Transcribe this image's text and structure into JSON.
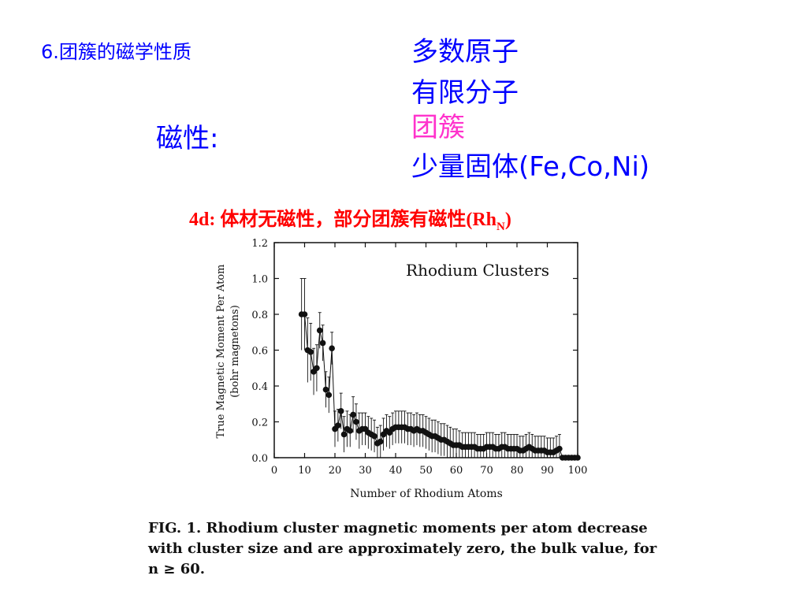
{
  "slide": {
    "section_title": "6.团簇的磁学性质",
    "magnetism_label": "磁性:",
    "categories": [
      "多数原子",
      "有限分子",
      "团簇",
      "少量固体(Fe,Co,Ni)"
    ],
    "category_colors": [
      "#0000ff",
      "#0000ff",
      "#ff33cc",
      "#0000ff"
    ],
    "rh_note_prefix": "4d: 体材无磁性，部分团簇有磁性(Rh",
    "rh_note_sub": "N",
    "rh_note_suffix": ")"
  },
  "chart_data": {
    "type": "scatter",
    "title": "Rhodium Clusters",
    "xlabel": "Number of Rhodium Atoms",
    "ylabel_line1": "True Magnetic Moment Per Atom",
    "ylabel_line2": "(bohr magnetons)",
    "xlim": [
      0,
      100
    ],
    "ylim": [
      0.0,
      1.2
    ],
    "xticks": [
      0,
      10,
      20,
      30,
      40,
      50,
      60,
      70,
      80,
      90,
      100
    ],
    "yticks": [
      0.0,
      0.2,
      0.4,
      0.6,
      0.8,
      1.0,
      1.2
    ],
    "ytick_labels": [
      "0.0",
      "0.2",
      "0.4",
      "0.6",
      "0.8",
      "1.0",
      "1.2"
    ],
    "x": [
      9,
      10,
      11,
      12,
      13,
      14,
      15,
      16,
      17,
      18,
      19,
      20,
      21,
      22,
      23,
      24,
      25,
      26,
      27,
      28,
      29,
      30,
      31,
      32,
      33,
      34,
      35,
      36,
      37,
      38,
      39,
      40,
      41,
      42,
      43,
      44,
      45,
      46,
      47,
      48,
      49,
      50,
      51,
      52,
      53,
      54,
      55,
      56,
      57,
      58,
      59,
      60,
      61,
      62,
      63,
      64,
      65,
      66,
      67,
      68,
      69,
      70,
      71,
      72,
      73,
      74,
      75,
      76,
      77,
      78,
      79,
      80,
      81,
      82,
      83,
      84,
      85,
      86,
      87,
      88,
      89,
      90,
      91,
      92,
      93,
      94,
      95,
      96,
      97,
      98,
      99,
      100
    ],
    "y": [
      0.8,
      0.8,
      0.6,
      0.59,
      0.48,
      0.5,
      0.71,
      0.64,
      0.38,
      0.35,
      0.61,
      0.16,
      0.18,
      0.26,
      0.13,
      0.16,
      0.15,
      0.24,
      0.2,
      0.15,
      0.16,
      0.16,
      0.14,
      0.13,
      0.12,
      0.08,
      0.09,
      0.13,
      0.15,
      0.14,
      0.16,
      0.17,
      0.17,
      0.17,
      0.17,
      0.16,
      0.16,
      0.15,
      0.16,
      0.15,
      0.15,
      0.14,
      0.13,
      0.12,
      0.12,
      0.11,
      0.1,
      0.1,
      0.09,
      0.08,
      0.07,
      0.07,
      0.07,
      0.06,
      0.06,
      0.06,
      0.06,
      0.06,
      0.05,
      0.05,
      0.05,
      0.06,
      0.06,
      0.06,
      0.05,
      0.05,
      0.06,
      0.06,
      0.05,
      0.05,
      0.05,
      0.05,
      0.04,
      0.04,
      0.05,
      0.06,
      0.05,
      0.04,
      0.04,
      0.04,
      0.04,
      0.03,
      0.03,
      0.03,
      0.04,
      0.05,
      0.0,
      0.0,
      0.0,
      0.0,
      0.0,
      0.0
    ],
    "error": [
      0.2,
      0.2,
      0.18,
      0.16,
      0.13,
      0.13,
      0.1,
      0.1,
      0.1,
      0.1,
      0.09,
      0.1,
      0.09,
      0.1,
      0.1,
      0.1,
      0.09,
      0.1,
      0.1,
      0.1,
      0.09,
      0.09,
      0.09,
      0.09,
      0.09,
      0.09,
      0.09,
      0.09,
      0.09,
      0.09,
      0.09,
      0.09,
      0.09,
      0.09,
      0.09,
      0.09,
      0.09,
      0.09,
      0.09,
      0.09,
      0.09,
      0.09,
      0.09,
      0.09,
      0.09,
      0.09,
      0.09,
      0.09,
      0.09,
      0.09,
      0.09,
      0.09,
      0.08,
      0.08,
      0.08,
      0.08,
      0.08,
      0.08,
      0.08,
      0.08,
      0.08,
      0.08,
      0.08,
      0.08,
      0.08,
      0.08,
      0.08,
      0.08,
      0.08,
      0.08,
      0.08,
      0.08,
      0.08,
      0.08,
      0.08,
      0.08,
      0.08,
      0.08,
      0.08,
      0.08,
      0.08,
      0.08,
      0.08,
      0.08,
      0.08,
      0.08,
      0.0,
      0.0,
      0.0,
      0.0,
      0.0,
      0.0
    ],
    "grid": false
  },
  "caption": {
    "text": "FIG. 1. Rhodium cluster magnetic moments per atom decrease with cluster size and are approximately zero, the bulk value, for n ≥ 60."
  }
}
